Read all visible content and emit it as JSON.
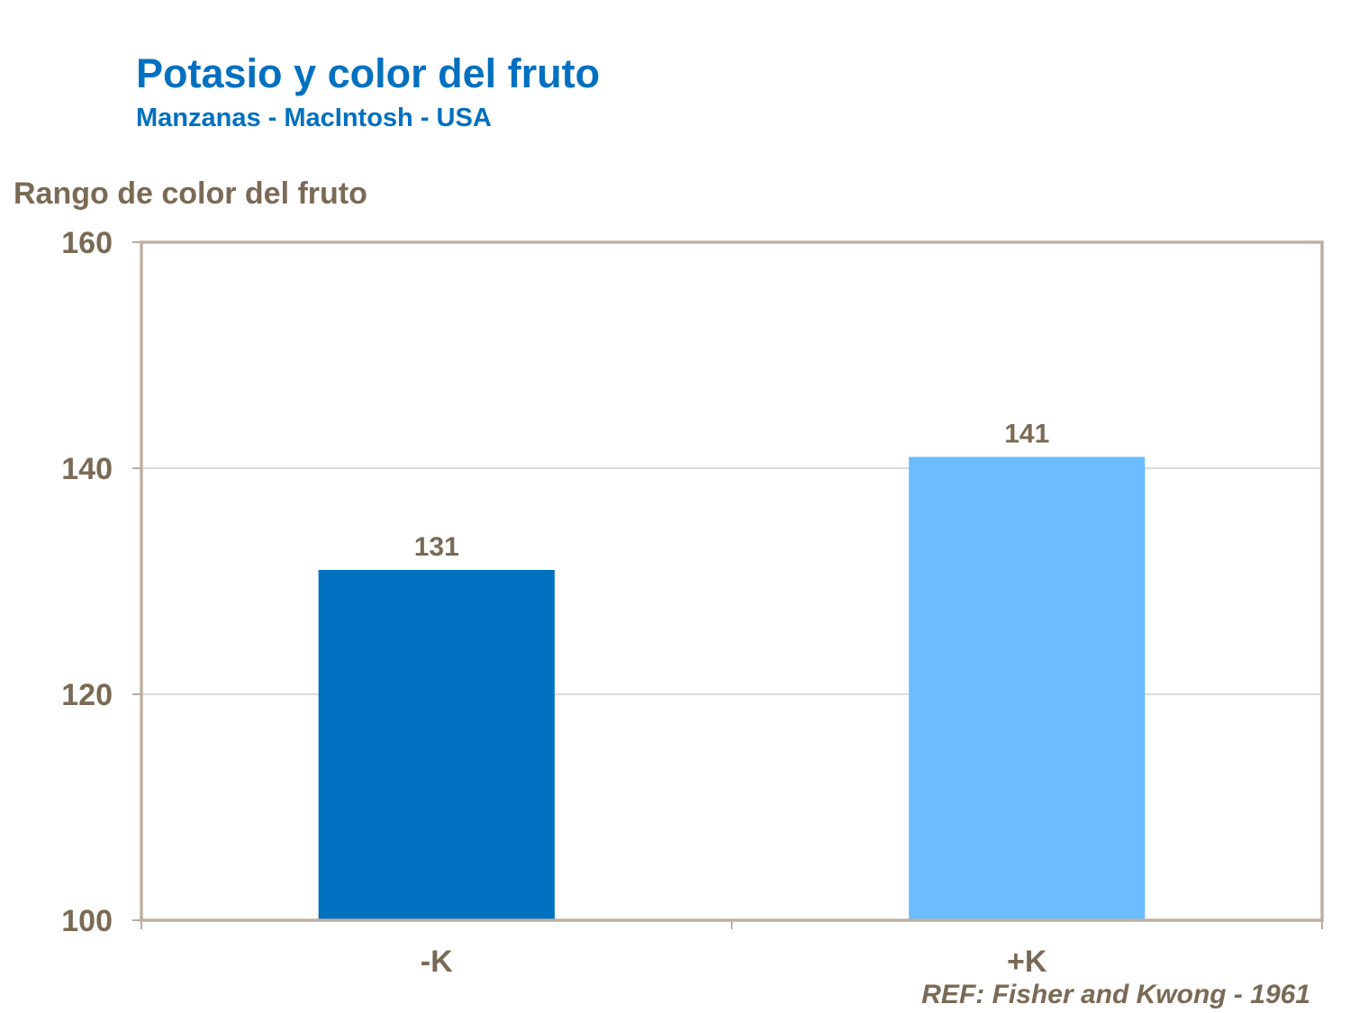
{
  "chart_data": {
    "type": "bar",
    "title": "Potasio y color del fruto",
    "subtitle": "Manzanas - MacIntosh - USA",
    "ylabel": "Rango de color del fruto",
    "xlabel": "",
    "categories": [
      "-K",
      "+K"
    ],
    "values": [
      131,
      141
    ],
    "data_labels": [
      "131",
      "141"
    ],
    "bar_colors": [
      "#0070c0",
      "#6bbdff"
    ],
    "ylim": [
      100,
      160
    ],
    "yticks": [
      100,
      120,
      140,
      160
    ],
    "grid": true,
    "legend": "none",
    "annotation": "REF: Fisher and Kwong - 1961",
    "colors": {
      "title": "#0070c0",
      "text": "#7a6a55",
      "frame": "#bdb0a3",
      "grid": "#b8b8b8"
    }
  }
}
